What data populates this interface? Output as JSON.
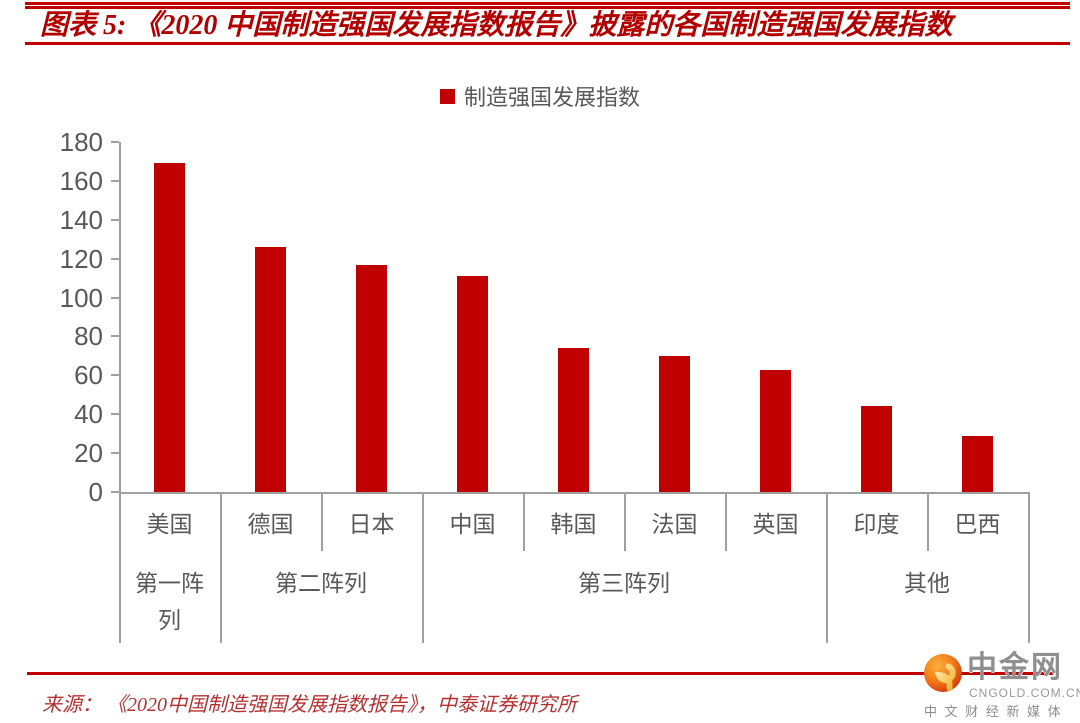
{
  "header": {
    "title": "图表 5: 《2020 中国制造强国发展指数报告》披露的各国制造强国发展指数"
  },
  "chart_data": {
    "type": "bar",
    "title": "图表 5: 《2020 中国制造强国发展指数报告》披露的各国制造强国发展指数",
    "legend": "制造强国发展指数",
    "legend_position": "top-center",
    "categories": [
      "美国",
      "德国",
      "日本",
      "中国",
      "韩国",
      "法国",
      "英国",
      "印度",
      "巴西"
    ],
    "values": [
      169,
      126,
      117,
      111,
      74,
      70,
      63,
      44,
      29
    ],
    "groups": [
      {
        "label": "第一阵列",
        "span": 1
      },
      {
        "label": "第二阵列",
        "span": 2
      },
      {
        "label": "第三阵列",
        "span": 4
      },
      {
        "label": "其他",
        "span": 2
      }
    ],
    "xlabel": "",
    "ylabel": "",
    "ylim": [
      0,
      180
    ],
    "ytick_step": 20,
    "yticks": [
      0,
      20,
      40,
      60,
      80,
      100,
      120,
      140,
      160,
      180
    ],
    "grid": false,
    "bar_color": "#c00000"
  },
  "footer": {
    "source": "来源： 《2020中国制造强国发展指数报告》，中泰证券研究所",
    "logo": {
      "name": "中金网",
      "domain": "CNGOLD.COM.CN",
      "tagline": "中 文 财 经 新 媒 体"
    }
  },
  "colors": {
    "accent_red": "#c00000",
    "title_red": "#b20000",
    "text_gray": "#595959",
    "line_gray": "#a0a0a0"
  }
}
